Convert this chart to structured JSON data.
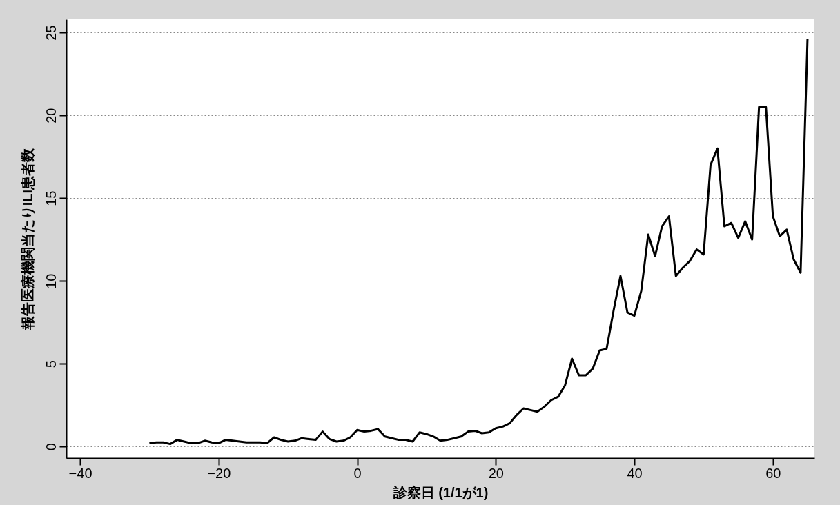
{
  "chart_data": {
    "type": "line",
    "xlabel": "診察日 (1/1が1)",
    "ylabel": "報告医療機関当たりILI患者数",
    "x": [
      -30,
      -29,
      -28,
      -27,
      -26,
      -25,
      -24,
      -23,
      -22,
      -21,
      -20,
      -19,
      -18,
      -17,
      -16,
      -15,
      -14,
      -13,
      -12,
      -11,
      -10,
      -9,
      -8,
      -7,
      -6,
      -5,
      -4,
      -3,
      -2,
      -1,
      0,
      1,
      2,
      3,
      4,
      5,
      6,
      7,
      8,
      9,
      10,
      11,
      12,
      13,
      14,
      15,
      16,
      17,
      18,
      19,
      20,
      21,
      22,
      23,
      24,
      25,
      26,
      27,
      28,
      29,
      30,
      31,
      32,
      33,
      34,
      35,
      36,
      37,
      38,
      39,
      40,
      41,
      42,
      43,
      44,
      45,
      46,
      47,
      48,
      49,
      50,
      51,
      52,
      53,
      54,
      55,
      56,
      57,
      58,
      59,
      60,
      61,
      62,
      63,
      64,
      65
    ],
    "series": [
      {
        "color": "#000000",
        "values": [
          0.2,
          0.25,
          0.25,
          0.15,
          0.4,
          0.3,
          0.2,
          0.2,
          0.35,
          0.25,
          0.2,
          0.4,
          0.35,
          0.3,
          0.25,
          0.25,
          0.25,
          0.2,
          0.55,
          0.4,
          0.3,
          0.35,
          0.5,
          0.45,
          0.4,
          0.9,
          0.45,
          0.3,
          0.35,
          0.55,
          1.0,
          0.9,
          0.95,
          1.05,
          0.6,
          0.5,
          0.4,
          0.4,
          0.3,
          0.85,
          0.75,
          0.6,
          0.35,
          0.4,
          0.5,
          0.6,
          0.9,
          0.95,
          0.8,
          0.85,
          1.1,
          1.2,
          1.4,
          1.9,
          2.3,
          2.2,
          2.1,
          2.4,
          2.8,
          3.0,
          3.7,
          5.3,
          4.3,
          4.3,
          4.7,
          5.8,
          5.9,
          8.2,
          10.3,
          8.1,
          7.9,
          9.4,
          12.8,
          11.5,
          13.3,
          13.9,
          10.3,
          10.8,
          11.2,
          11.9,
          11.6,
          17.0,
          18.0,
          13.3,
          13.5,
          12.6,
          13.6,
          12.5,
          20.5,
          20.5,
          13.9,
          12.7,
          13.1,
          11.3,
          10.5,
          24.6
        ]
      }
    ],
    "xlim": [
      -42,
      66
    ],
    "ylim": [
      -0.7,
      25.8
    ],
    "xticks": [
      -40,
      -20,
      0,
      20,
      40,
      60
    ],
    "yticks": [
      0,
      5,
      10,
      15,
      20,
      25
    ],
    "grid": "y",
    "marker": "none",
    "line_style": "solid",
    "legend": false
  }
}
